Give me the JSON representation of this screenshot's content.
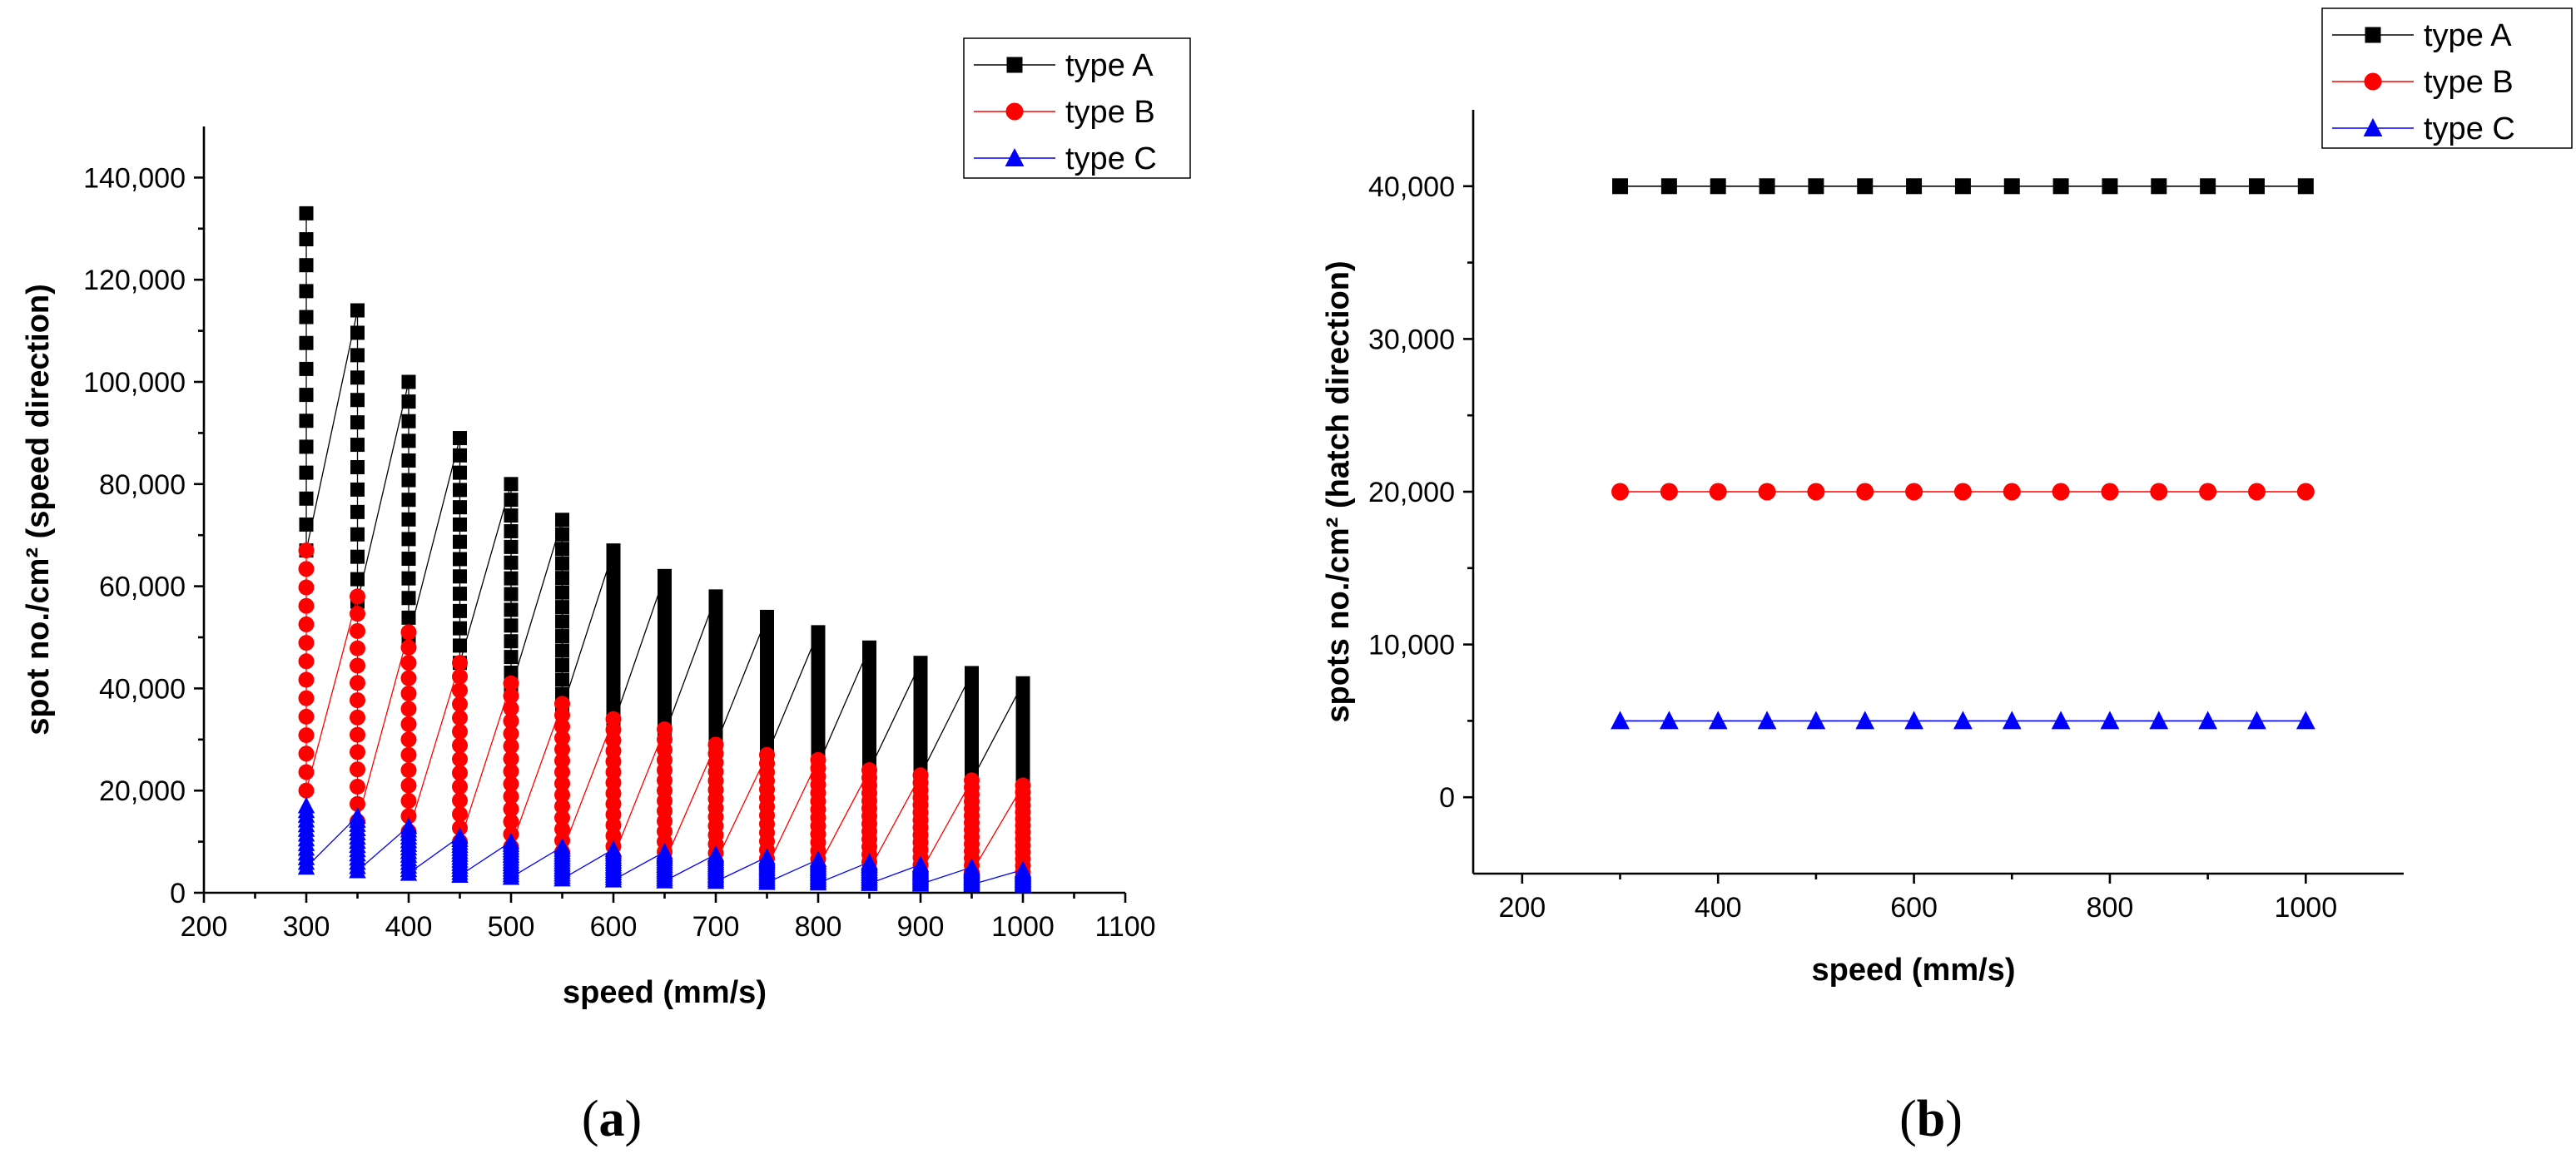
{
  "chart_data": [
    {
      "type": "line",
      "panel_label": "(a)",
      "panel_letter": "a",
      "xlabel": "speed (mm/s)",
      "ylabel": "spot no./cm² (speed direction)",
      "xlim": [
        200,
        1100
      ],
      "ylim": [
        0,
        150000
      ],
      "x_ticks": [
        200,
        300,
        400,
        500,
        600,
        700,
        800,
        900,
        1000,
        1100
      ],
      "y_ticks": [
        0,
        20000,
        40000,
        60000,
        80000,
        100000,
        120000,
        140000
      ],
      "x_tick_labels": [
        "200",
        "300",
        "400",
        "500",
        "600",
        "700",
        "800",
        "900",
        "1000",
        "1100"
      ],
      "y_tick_labels": [
        "0",
        "20,000",
        "40,000",
        "60,000",
        "80,000",
        "100,000",
        "120,000",
        "140,000"
      ],
      "legend_position": "top-right",
      "x": [
        300,
        350,
        400,
        450,
        500,
        550,
        600,
        650,
        700,
        750,
        800,
        850,
        900,
        950,
        1000
      ],
      "series": [
        {
          "name": "type A",
          "color": "#000000",
          "marker": "square",
          "max": [
            133000,
            114000,
            100000,
            89000,
            80000,
            73000,
            67000,
            62000,
            58000,
            54000,
            51000,
            48000,
            45000,
            43000,
            41000
          ],
          "min": [
            67000,
            57000,
            50000,
            45000,
            40000,
            36000,
            33000,
            31000,
            29000,
            27000,
            25000,
            24000,
            23000,
            22000,
            21000
          ]
        },
        {
          "name": "type B",
          "color": "#ff0000",
          "marker": "circle",
          "max": [
            67000,
            58000,
            51000,
            45000,
            41000,
            37000,
            34000,
            32000,
            29000,
            27000,
            26000,
            24000,
            23000,
            22000,
            21000
          ],
          "min": [
            20000,
            14000,
            12000,
            10000,
            9000,
            8000,
            7000,
            6000,
            6000,
            5000,
            5000,
            4500,
            4000,
            4000,
            4000
          ]
        },
        {
          "name": "type C",
          "color": "#0000ff",
          "marker": "triangle",
          "max": [
            17000,
            15000,
            13000,
            11000,
            10000,
            9000,
            8500,
            8000,
            7500,
            7000,
            6500,
            6000,
            5500,
            5000,
            4500
          ],
          "min": [
            5000,
            4300,
            3800,
            3400,
            3000,
            2700,
            2500,
            2300,
            2200,
            2000,
            1900,
            1800,
            1700,
            1600,
            1500
          ]
        }
      ]
    },
    {
      "type": "line",
      "panel_label": "(b)",
      "panel_letter": "b",
      "xlabel": "speed (mm/s)",
      "ylabel": "spots no./cm² (hatch direction)",
      "xlim": [
        150,
        1100
      ],
      "ylim": [
        -5000,
        45000
      ],
      "x_ticks": [
        200,
        400,
        600,
        800,
        1000
      ],
      "y_ticks": [
        0,
        10000,
        20000,
        30000,
        40000
      ],
      "x_tick_labels": [
        "200",
        "400",
        "600",
        "800",
        "1000"
      ],
      "y_tick_labels": [
        "0",
        "10,000",
        "20,000",
        "30,000",
        "40,000"
      ],
      "legend_position": "top-right",
      "x": [
        300,
        350,
        400,
        450,
        500,
        550,
        600,
        650,
        700,
        750,
        800,
        850,
        900,
        950,
        1000
      ],
      "series": [
        {
          "name": "type A",
          "color": "#000000",
          "marker": "square",
          "values": [
            40000,
            40000,
            40000,
            40000,
            40000,
            40000,
            40000,
            40000,
            40000,
            40000,
            40000,
            40000,
            40000,
            40000,
            40000
          ]
        },
        {
          "name": "type B",
          "color": "#ff0000",
          "marker": "circle",
          "values": [
            20000,
            20000,
            20000,
            20000,
            20000,
            20000,
            20000,
            20000,
            20000,
            20000,
            20000,
            20000,
            20000,
            20000,
            20000
          ]
        },
        {
          "name": "type C",
          "color": "#0000ff",
          "marker": "triangle",
          "values": [
            5000,
            5000,
            5000,
            5000,
            5000,
            5000,
            5000,
            5000,
            5000,
            5000,
            5000,
            5000,
            5000,
            5000,
            5000
          ]
        }
      ]
    }
  ]
}
